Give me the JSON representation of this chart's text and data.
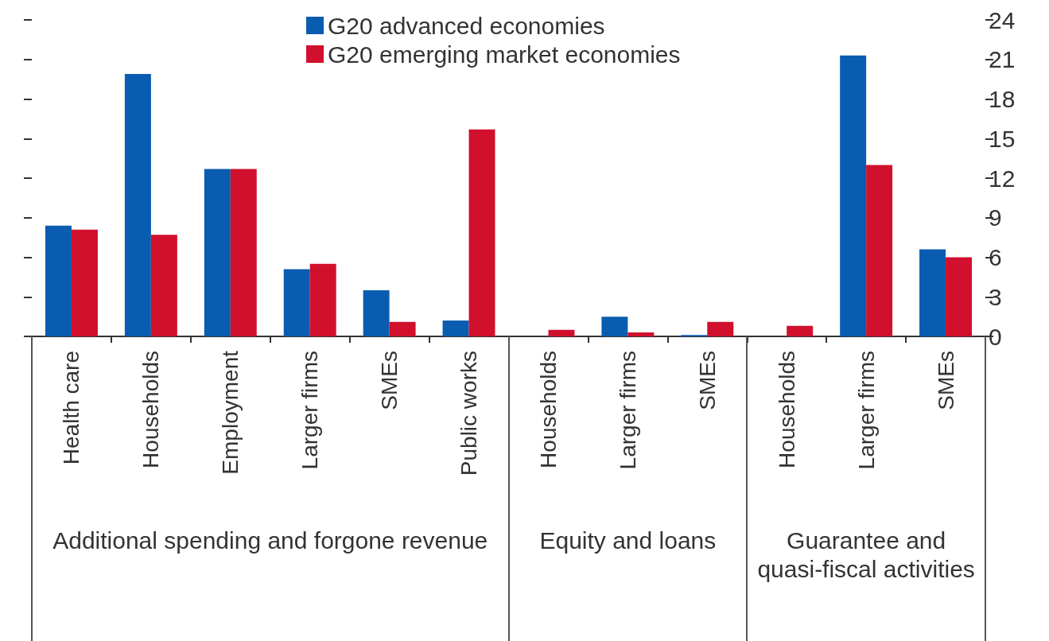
{
  "chart_data": {
    "type": "bar",
    "categories": [
      "Health care",
      "Households",
      "Employment",
      "Larger firms",
      "SMEs",
      "Public works",
      "Households",
      "Larger firms",
      "SMEs",
      "Households",
      "Larger firms",
      "SMEs"
    ],
    "series": [
      {
        "name": "G20 advanced economies",
        "color": "#0a5cb0",
        "values": [
          8.4,
          19.9,
          12.7,
          5.1,
          3.5,
          1.2,
          0,
          1.5,
          0.1,
          0,
          21.3,
          6.6
        ]
      },
      {
        "name": "G20 emerging market economies",
        "color": "#d0102c",
        "values": [
          8.1,
          7.7,
          12.7,
          5.5,
          1.1,
          15.7,
          0.5,
          0.3,
          1.1,
          0.8,
          13.0,
          6.0
        ]
      }
    ],
    "ylim": [
      0,
      24
    ],
    "yticks": [
      0,
      3,
      6,
      9,
      12,
      15,
      18,
      21,
      24
    ],
    "annotations": [
      "Additional spending and forgone revenue",
      "Equity and loans",
      "Guarantee and quasi-fiscal activities"
    ],
    "legend": "top",
    "grid": false
  }
}
